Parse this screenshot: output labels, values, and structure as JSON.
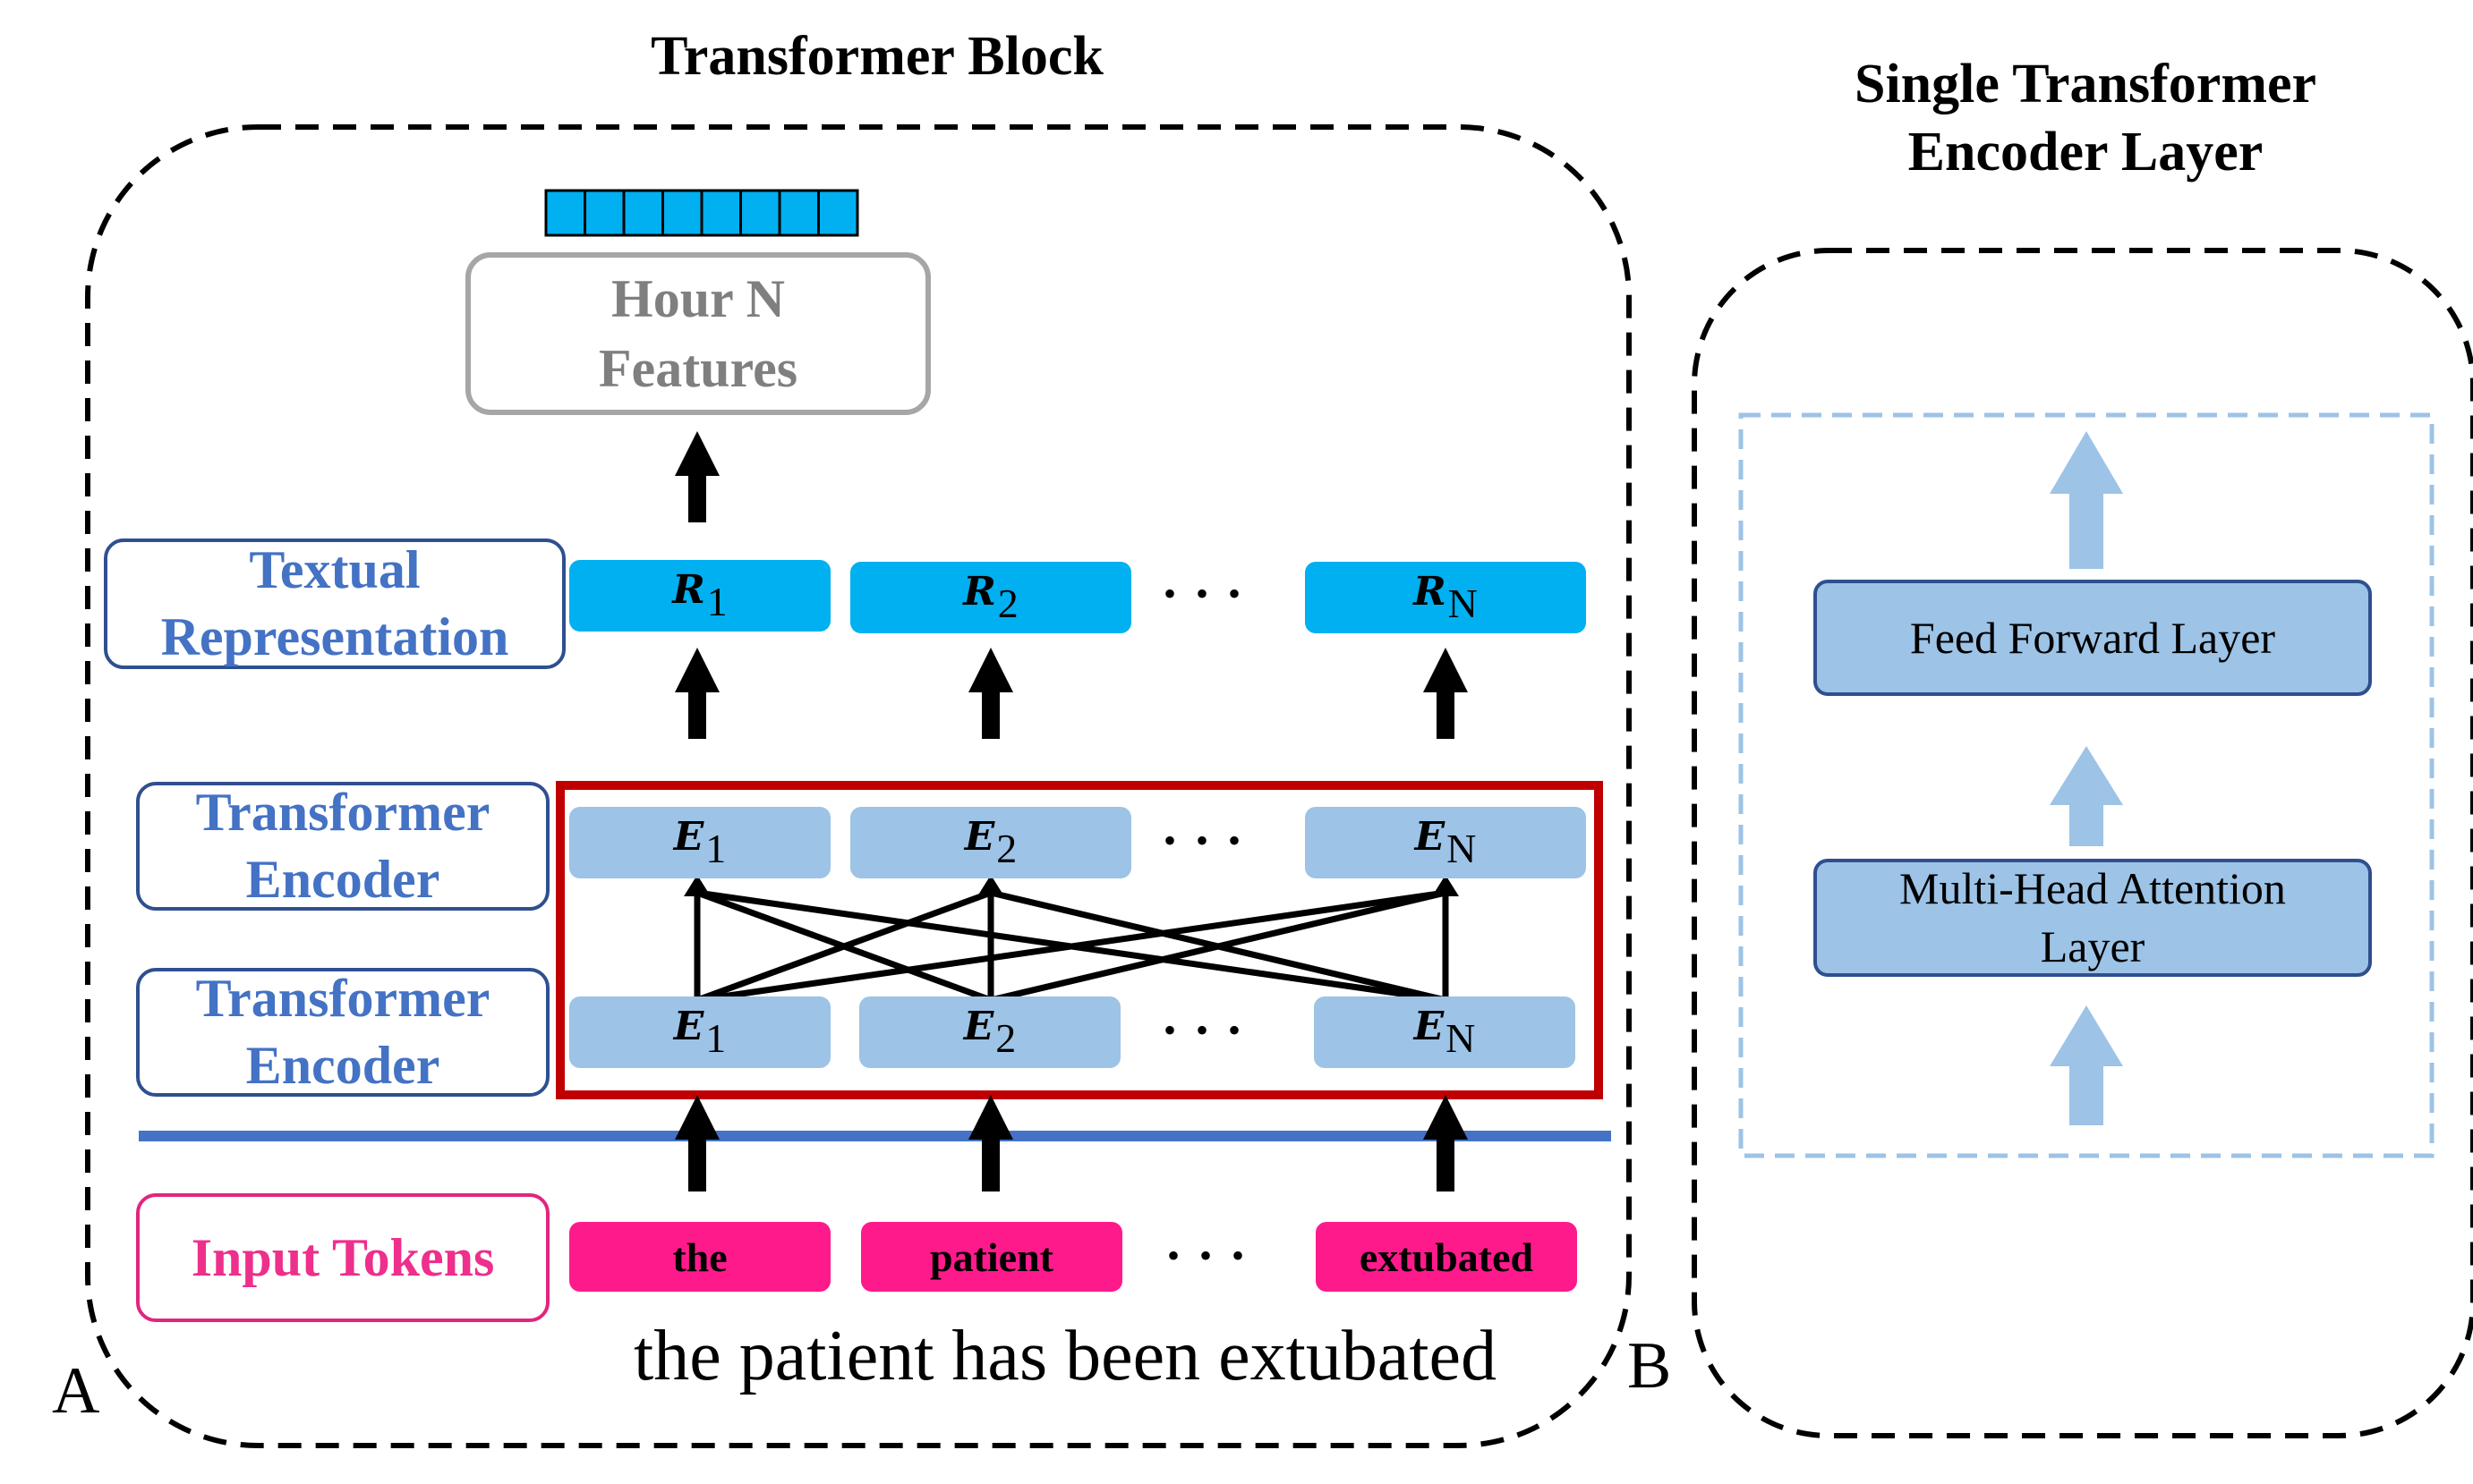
{
  "panel_a": {
    "title": "Transformer Block",
    "label": "A",
    "output_box": [
      "Hour N",
      "Features"
    ],
    "row_labels": {
      "textual_representation": [
        "Textual",
        "Representation"
      ],
      "encoder_upper": [
        "Transformer",
        "Encoder"
      ],
      "encoder_lower": [
        "Transformer",
        "Encoder"
      ],
      "input_tokens": [
        "Input Tokens"
      ]
    },
    "representations": [
      {
        "sym": "R",
        "sub": "1"
      },
      {
        "sym": "R",
        "sub": "2"
      },
      {
        "sym": "R",
        "sub": "N"
      }
    ],
    "encodings_upper": [
      {
        "sym": "E",
        "sub": "1"
      },
      {
        "sym": "E",
        "sub": "2"
      },
      {
        "sym": "E",
        "sub": "N"
      }
    ],
    "encodings_lower": [
      {
        "sym": "E",
        "sub": "1"
      },
      {
        "sym": "E",
        "sub": "2"
      },
      {
        "sym": "E",
        "sub": "N"
      }
    ],
    "tokens": [
      "the",
      "patient",
      "extubated"
    ],
    "ellipsis": "• • •",
    "sentence": "the patient has been extubated"
  },
  "panel_b": {
    "title": [
      "Single Transformer",
      "Encoder Layer"
    ],
    "label": "B",
    "feed_forward": [
      "Feed Forward Layer"
    ],
    "attention": [
      "Multi-Head Attention",
      "Layer"
    ]
  },
  "colors": {
    "representation_fill": "#00b0f0",
    "encoding_fill": "#9dc3e6",
    "token_fill": "#ff1a8c",
    "input_label": "#ee2f8b",
    "row_label_text": "#4472c4",
    "box_border": "#2f4f8f",
    "highlight_frame": "#c00000",
    "separator_line": "#4472c4",
    "light_arrow": "#9dc3e6"
  }
}
